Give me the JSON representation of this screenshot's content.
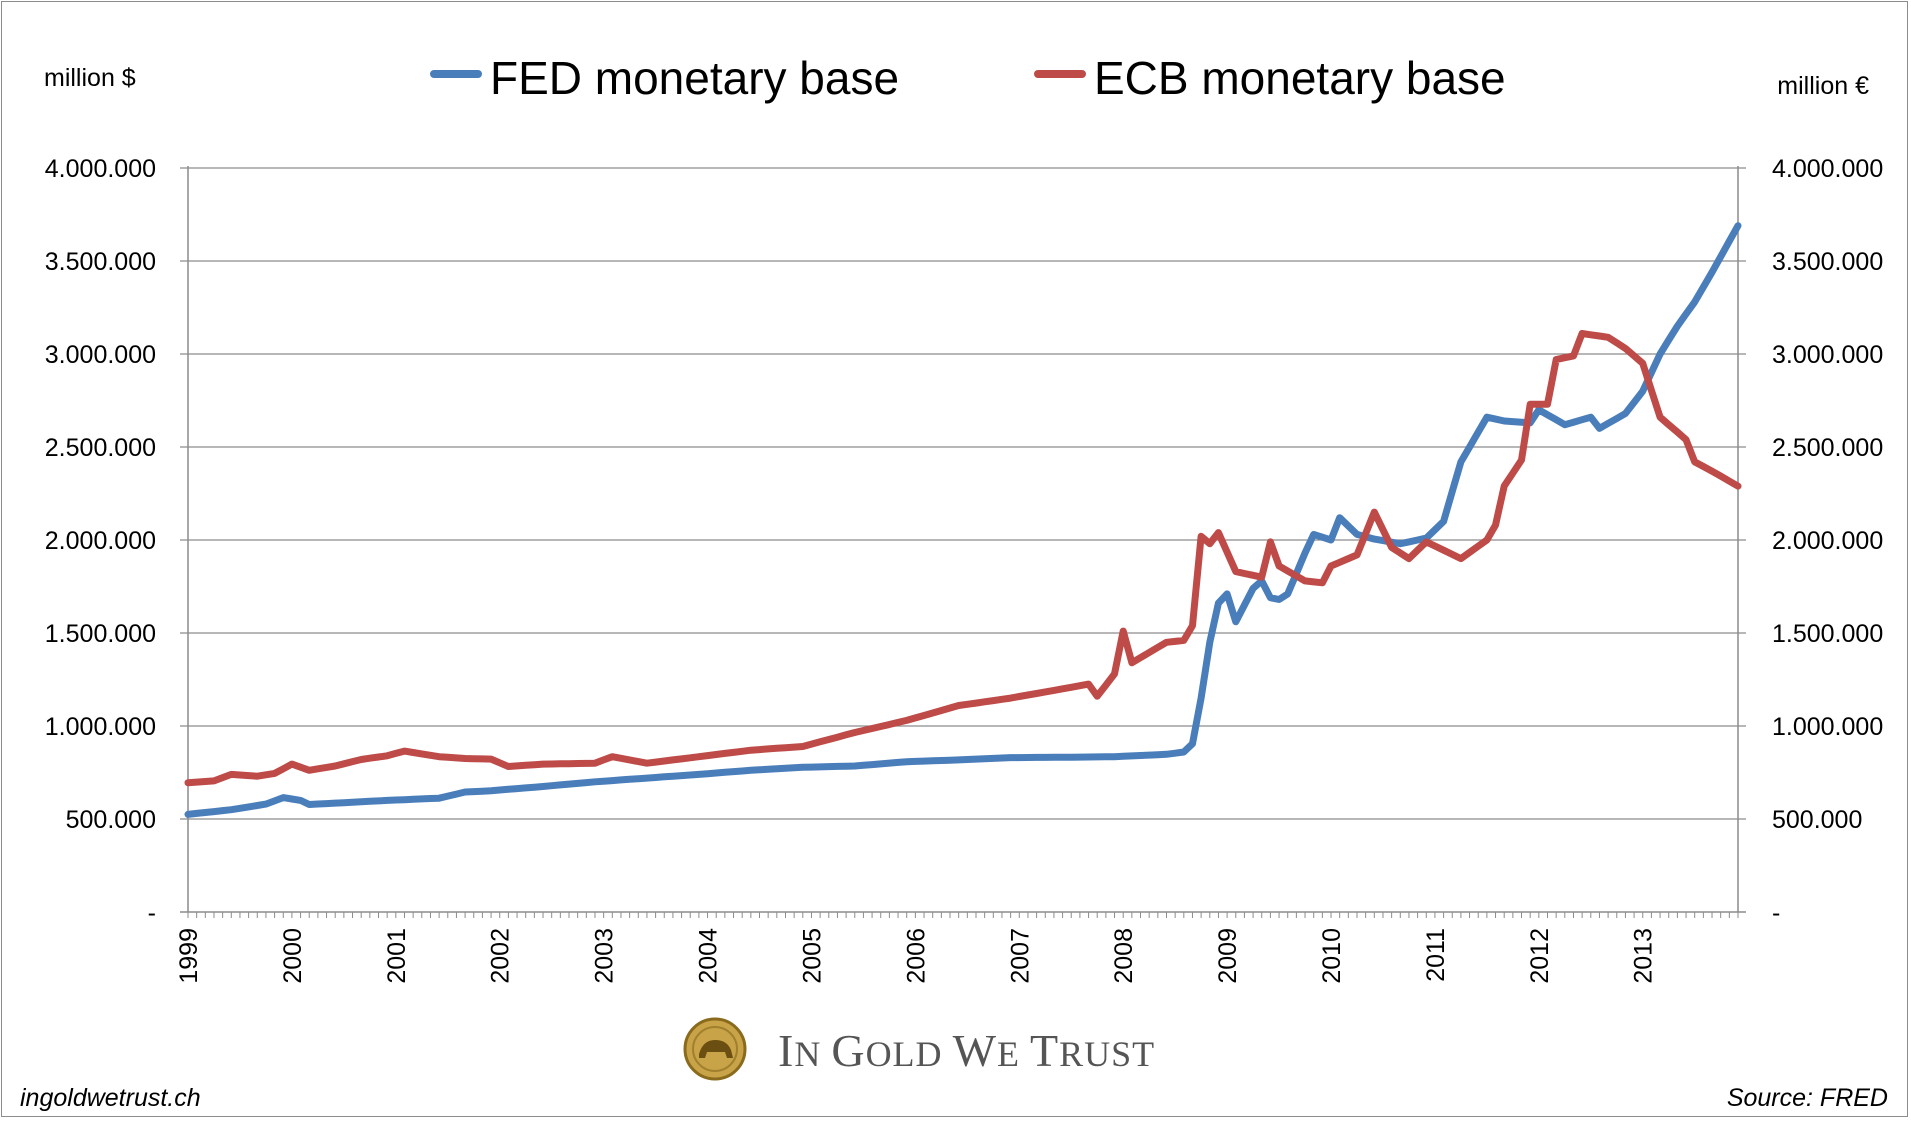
{
  "chart_data": {
    "type": "line",
    "title": "",
    "xlabel": "",
    "ylabel_left": "million $",
    "ylabel_right": "million €",
    "x_start": "1999-01",
    "x_end": "2013-12",
    "x_tick_labels": [
      "1999",
      "2000",
      "2001",
      "2002",
      "2003",
      "2004",
      "2005",
      "2006",
      "2007",
      "2008",
      "2009",
      "2010",
      "2011",
      "2012",
      "2013"
    ],
    "ylim": [
      0,
      4000000
    ],
    "y_ticks": [
      0,
      500000,
      1000000,
      1500000,
      2000000,
      2500000,
      3000000,
      3500000,
      4000000
    ],
    "y_tick_labels": [
      "-",
      "500.000",
      "1.000.000",
      "1.500.000",
      "2.000.000",
      "2.500.000",
      "3.000.000",
      "3.500.000",
      "4.000.000"
    ],
    "grid": true,
    "legend_position": "top",
    "series": [
      {
        "name": "FED monetary base",
        "axis": "left",
        "color": "#4a7ebb",
        "points": [
          [
            "1999-01",
            525000
          ],
          [
            "1999-06",
            550000
          ],
          [
            "1999-10",
            580000
          ],
          [
            "1999-12",
            615000
          ],
          [
            "2000-02",
            600000
          ],
          [
            "2000-03",
            578000
          ],
          [
            "2000-12",
            600000
          ],
          [
            "2001-06",
            612000
          ],
          [
            "2001-09",
            645000
          ],
          [
            "2001-12",
            652000
          ],
          [
            "2002-06",
            675000
          ],
          [
            "2002-12",
            700000
          ],
          [
            "2003-06",
            720000
          ],
          [
            "2003-12",
            740000
          ],
          [
            "2004-06",
            762000
          ],
          [
            "2004-12",
            778000
          ],
          [
            "2005-06",
            785000
          ],
          [
            "2005-12",
            808000
          ],
          [
            "2006-06",
            818000
          ],
          [
            "2006-12",
            830000
          ],
          [
            "2007-06",
            832000
          ],
          [
            "2007-12",
            835000
          ],
          [
            "2008-06",
            848000
          ],
          [
            "2008-08",
            860000
          ],
          [
            "2008-09",
            905000
          ],
          [
            "2008-10",
            1150000
          ],
          [
            "2008-11",
            1450000
          ],
          [
            "2008-12",
            1660000
          ],
          [
            "2009-01",
            1710000
          ],
          [
            "2009-02",
            1560000
          ],
          [
            "2009-04",
            1740000
          ],
          [
            "2009-05",
            1780000
          ],
          [
            "2009-06",
            1690000
          ],
          [
            "2009-07",
            1680000
          ],
          [
            "2009-08",
            1710000
          ],
          [
            "2009-10",
            1930000
          ],
          [
            "2009-11",
            2030000
          ],
          [
            "2010-01",
            2000000
          ],
          [
            "2010-02",
            2120000
          ],
          [
            "2010-04",
            2030000
          ],
          [
            "2010-06",
            2005000
          ],
          [
            "2010-09",
            1980000
          ],
          [
            "2010-12",
            2010000
          ],
          [
            "2011-02",
            2100000
          ],
          [
            "2011-04",
            2420000
          ],
          [
            "2011-07",
            2660000
          ],
          [
            "2011-09",
            2640000
          ],
          [
            "2011-12",
            2630000
          ],
          [
            "2012-01",
            2700000
          ],
          [
            "2012-04",
            2620000
          ],
          [
            "2012-07",
            2660000
          ],
          [
            "2012-08",
            2600000
          ],
          [
            "2012-11",
            2680000
          ],
          [
            "2013-01",
            2800000
          ],
          [
            "2013-03",
            3000000
          ],
          [
            "2013-05",
            3150000
          ],
          [
            "2013-07",
            3280000
          ],
          [
            "2013-09",
            3440000
          ],
          [
            "2013-12",
            3690000
          ]
        ]
      },
      {
        "name": "ECB monetary base",
        "axis": "right",
        "color": "#be4b48",
        "points": [
          [
            "1999-01",
            695000
          ],
          [
            "1999-04",
            705000
          ],
          [
            "1999-06",
            740000
          ],
          [
            "1999-09",
            730000
          ],
          [
            "1999-11",
            745000
          ],
          [
            "2000-01",
            795000
          ],
          [
            "2000-03",
            762000
          ],
          [
            "2000-06",
            785000
          ],
          [
            "2000-09",
            820000
          ],
          [
            "2000-12",
            840000
          ],
          [
            "2001-02",
            865000
          ],
          [
            "2001-06",
            835000
          ],
          [
            "2001-09",
            825000
          ],
          [
            "2001-12",
            822000
          ],
          [
            "2002-02",
            782000
          ],
          [
            "2002-06",
            795000
          ],
          [
            "2002-12",
            800000
          ],
          [
            "2003-02",
            835000
          ],
          [
            "2003-06",
            800000
          ],
          [
            "2003-12",
            835000
          ],
          [
            "2004-06",
            870000
          ],
          [
            "2004-12",
            890000
          ],
          [
            "2005-06",
            965000
          ],
          [
            "2005-12",
            1030000
          ],
          [
            "2006-06",
            1110000
          ],
          [
            "2006-12",
            1150000
          ],
          [
            "2007-06",
            1200000
          ],
          [
            "2007-09",
            1225000
          ],
          [
            "2007-10",
            1160000
          ],
          [
            "2007-12",
            1280000
          ],
          [
            "2008-01",
            1510000
          ],
          [
            "2008-02",
            1340000
          ],
          [
            "2008-06",
            1450000
          ],
          [
            "2008-08",
            1460000
          ],
          [
            "2008-09",
            1540000
          ],
          [
            "2008-10",
            2020000
          ],
          [
            "2008-11",
            1980000
          ],
          [
            "2008-12",
            2040000
          ],
          [
            "2009-02",
            1830000
          ],
          [
            "2009-05",
            1800000
          ],
          [
            "2009-06",
            1990000
          ],
          [
            "2009-07",
            1860000
          ],
          [
            "2009-10",
            1780000
          ],
          [
            "2009-12",
            1770000
          ],
          [
            "2010-01",
            1860000
          ],
          [
            "2010-04",
            1920000
          ],
          [
            "2010-06",
            2150000
          ],
          [
            "2010-08",
            1960000
          ],
          [
            "2010-10",
            1900000
          ],
          [
            "2010-12",
            1990000
          ],
          [
            "2011-04",
            1900000
          ],
          [
            "2011-07",
            2000000
          ],
          [
            "2011-08",
            2080000
          ],
          [
            "2011-09",
            2290000
          ],
          [
            "2011-11",
            2430000
          ],
          [
            "2011-12",
            2730000
          ],
          [
            "2012-02",
            2730000
          ],
          [
            "2012-03",
            2970000
          ],
          [
            "2012-05",
            2990000
          ],
          [
            "2012-06",
            3110000
          ],
          [
            "2012-09",
            3090000
          ],
          [
            "2012-11",
            3030000
          ],
          [
            "2013-01",
            2950000
          ],
          [
            "2013-03",
            2660000
          ],
          [
            "2013-06",
            2540000
          ],
          [
            "2013-07",
            2420000
          ],
          [
            "2013-09",
            2370000
          ],
          [
            "2013-12",
            2290000
          ]
        ]
      }
    ]
  },
  "logo": {
    "text_big_1": "I",
    "text_small_1": "N ",
    "text_big_2": "G",
    "text_small_2": "OLD ",
    "text_big_3": "W",
    "text_small_3": "E ",
    "text_big_4": "T",
    "text_small_4": "RUST"
  },
  "footer": {
    "left": "ingoldwetrust.ch",
    "right": "Source: FRED"
  }
}
